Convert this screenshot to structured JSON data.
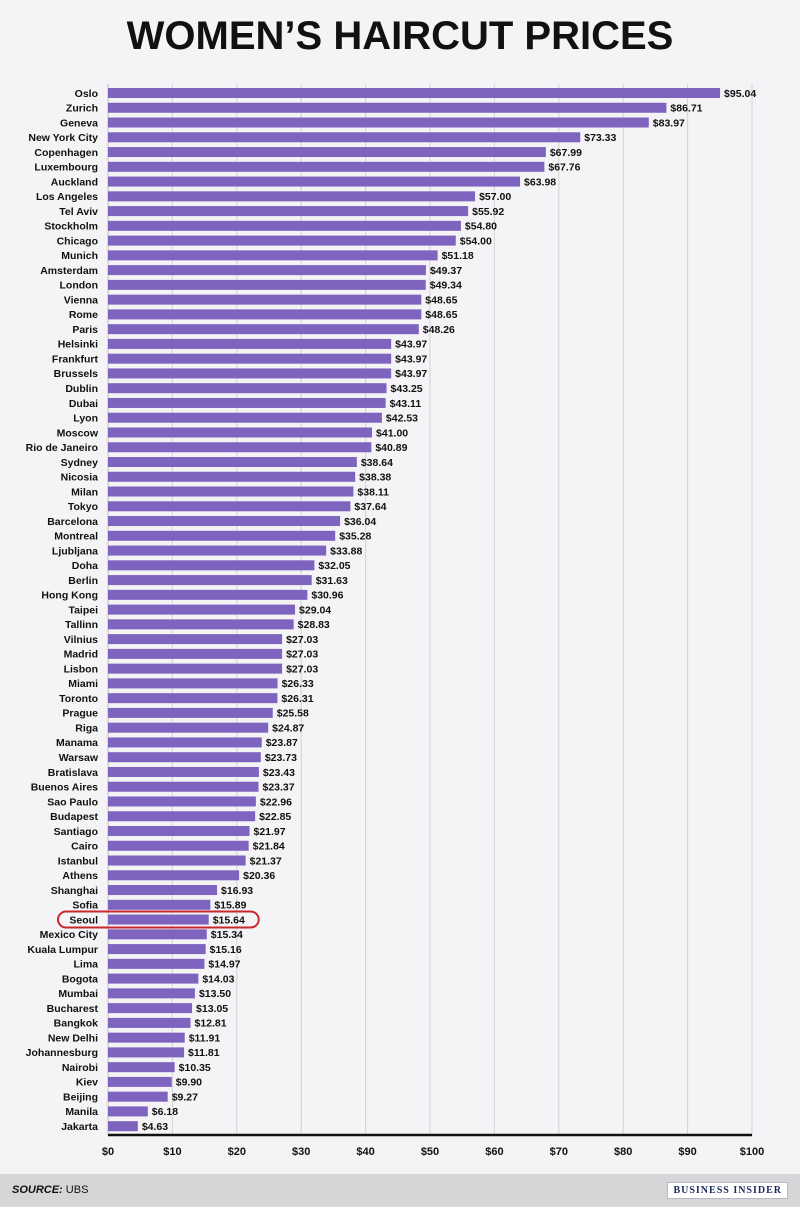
{
  "chart_data": {
    "type": "bar",
    "orientation": "horizontal",
    "title": "WOMEN’S HAIRCUT PRICES",
    "xlim": [
      0,
      100
    ],
    "x_ticks": [
      "$0",
      "$10",
      "$20",
      "$30",
      "$40",
      "$50",
      "$60",
      "$70",
      "$80",
      "$90",
      "$100"
    ],
    "grid": true,
    "bar_color": "#7e64bf",
    "highlight_color": "#c8282d",
    "highlight_category": "Seoul",
    "categories": [
      "Oslo",
      "Zurich",
      "Geneva",
      "New York City",
      "Copenhagen",
      "Luxembourg",
      "Auckland",
      "Los Angeles",
      "Tel Aviv",
      "Stockholm",
      "Chicago",
      "Munich",
      "Amsterdam",
      "London",
      "Vienna",
      "Rome",
      "Paris",
      "Helsinki",
      "Frankfurt",
      "Brussels",
      "Dublin",
      "Dubai",
      "Lyon",
      "Moscow",
      "Rio de Janeiro",
      "Sydney",
      "Nicosia",
      "Milan",
      "Tokyo",
      "Barcelona",
      "Montreal",
      "Ljubljana",
      "Doha",
      "Berlin",
      "Hong Kong",
      "Taipei",
      "Tallinn",
      "Vilnius",
      "Madrid",
      "Lisbon",
      "Miami",
      "Toronto",
      "Prague",
      "Riga",
      "Manama",
      "Warsaw",
      "Bratislava",
      "Buenos Aires",
      "Sao Paulo",
      "Budapest",
      "Santiago",
      "Cairo",
      "Istanbul",
      "Athens",
      "Shanghai",
      "Sofia",
      "Seoul",
      "Mexico City",
      "Kuala Lumpur",
      "Lima",
      "Bogota",
      "Mumbai",
      "Bucharest",
      "Bangkok",
      "New Delhi",
      "Johannesburg",
      "Nairobi",
      "Kiev",
      "Beijing",
      "Manila",
      "Jakarta"
    ],
    "values": [
      95.04,
      86.71,
      83.97,
      73.33,
      67.99,
      67.76,
      63.98,
      57.0,
      55.92,
      54.8,
      54.0,
      51.18,
      49.37,
      49.34,
      48.65,
      48.65,
      48.26,
      43.97,
      43.97,
      43.97,
      43.25,
      43.11,
      42.53,
      41.0,
      40.89,
      38.64,
      38.38,
      38.11,
      37.64,
      36.04,
      35.28,
      33.88,
      32.05,
      31.63,
      30.96,
      29.04,
      28.83,
      27.03,
      27.03,
      27.03,
      26.33,
      26.31,
      25.58,
      24.87,
      23.87,
      23.73,
      23.43,
      23.37,
      22.96,
      22.85,
      21.97,
      21.84,
      21.37,
      20.36,
      16.93,
      15.89,
      15.64,
      15.34,
      15.16,
      14.97,
      14.03,
      13.5,
      13.05,
      12.81,
      11.91,
      11.81,
      10.35,
      9.9,
      9.27,
      6.18,
      4.63
    ],
    "data_labels": [
      "$95.04",
      "$86.71",
      "$83.97",
      "$73.33",
      "$67.99",
      "$67.76",
      "$63.98",
      "$57.00",
      "$55.92",
      "$54.80",
      "$54.00",
      "$51.18",
      "$49.37",
      "$49.34",
      "$48.65",
      "$48.65",
      "$48.26",
      "$43.97",
      "$43.97",
      "$43.97",
      "$43.25",
      "$43.11",
      "$42.53",
      "$41.00",
      "$40.89",
      "$38.64",
      "$38.38",
      "$38.11",
      "$37.64",
      "$36.04",
      "$35.28",
      "$33.88",
      "$32.05",
      "$31.63",
      "$30.96",
      "$29.04",
      "$28.83",
      "$27.03",
      "$27.03",
      "$27.03",
      "$26.33",
      "$26.31",
      "$25.58",
      "$24.87",
      "$23.87",
      "$23.73",
      "$23.43",
      "$23.37",
      "$22.96",
      "$22.85",
      "$21.97",
      "$21.84",
      "$21.37",
      "$20.36",
      "$16.93",
      "$15.89",
      "$15.64",
      "$15.34",
      "$15.16",
      "$14.97",
      "$14.03",
      "$13.50",
      "$13.05",
      "$12.81",
      "$11.91",
      "$11.81",
      "$10.35",
      "$9.90",
      "$9.27",
      "$6.18",
      "$4.63"
    ]
  },
  "footer": {
    "source_key": "SOURCE:",
    "source_value": "UBS",
    "brand": "BUSINESS INSIDER"
  }
}
